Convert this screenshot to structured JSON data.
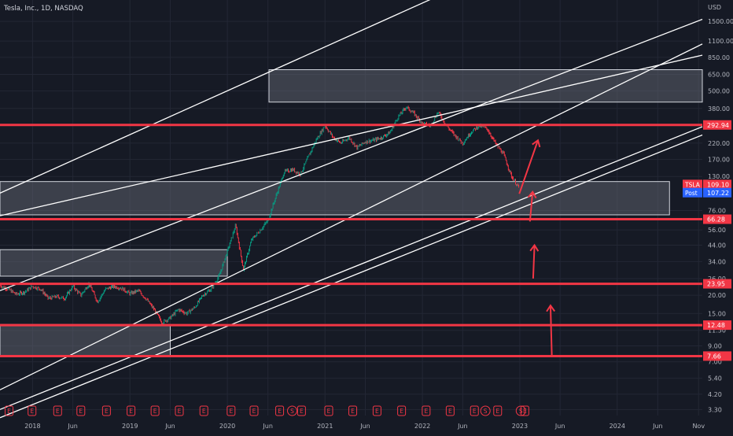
{
  "header": {
    "symbol_title": "Tesla, Inc., 1D, NASDAQ",
    "currency": "USD"
  },
  "colors": {
    "background": "#161a25",
    "grid": "#232735",
    "hline": "#f23645",
    "trend": "#ffffff",
    "zone_fill": "#5d606b",
    "candle_up": "#089981",
    "candle_down": "#f23645",
    "tag_price": "#f23645",
    "tag_post": "#2962ff"
  },
  "chart_data": {
    "type": "candlestick",
    "scale": "log",
    "x_range": [
      "2017-09-01",
      "2024-11-15"
    ],
    "y_range": [
      3.0,
      2100
    ],
    "x_ticks": [
      {
        "label": "2018",
        "date": "2018-01-01"
      },
      {
        "label": "Jun",
        "date": "2018-06-01"
      },
      {
        "label": "2019",
        "date": "2019-01-01"
      },
      {
        "label": "Jun",
        "date": "2019-06-01"
      },
      {
        "label": "2020",
        "date": "2020-01-01"
      },
      {
        "label": "Jun",
        "date": "2020-06-01"
      },
      {
        "label": "2021",
        "date": "2021-01-01"
      },
      {
        "label": "Jun",
        "date": "2021-06-01"
      },
      {
        "label": "2022",
        "date": "2022-01-01"
      },
      {
        "label": "Jun",
        "date": "2022-06-01"
      },
      {
        "label": "2023",
        "date": "2023-01-01"
      },
      {
        "label": "Jun",
        "date": "2023-06-01"
      },
      {
        "label": "2024",
        "date": "2024-01-01"
      },
      {
        "label": "Jun",
        "date": "2024-06-01"
      },
      {
        "label": "Nov",
        "date": "2024-11-01"
      }
    ],
    "y_ticks": [
      {
        "label": "1500.00",
        "value": 1500
      },
      {
        "label": "1100.00",
        "value": 1100
      },
      {
        "label": "850.00",
        "value": 850
      },
      {
        "label": "650.00",
        "value": 650
      },
      {
        "label": "500.00",
        "value": 500
      },
      {
        "label": "380.00",
        "value": 380
      },
      {
        "label": "220.00",
        "value": 220
      },
      {
        "label": "170.00",
        "value": 170
      },
      {
        "label": "130.00",
        "value": 130
      },
      {
        "label": "76.00",
        "value": 76
      },
      {
        "label": "56.00",
        "value": 56
      },
      {
        "label": "44.00",
        "value": 44
      },
      {
        "label": "34.00",
        "value": 34
      },
      {
        "label": "26.00",
        "value": 26
      },
      {
        "label": "20.00",
        "value": 20
      },
      {
        "label": "15.00",
        "value": 15
      },
      {
        "label": "11.50",
        "value": 11.5
      },
      {
        "label": "9.00",
        "value": 9
      },
      {
        "label": "7.00",
        "value": 7
      },
      {
        "label": "5.40",
        "value": 5.4
      },
      {
        "label": "4.20",
        "value": 4.2
      },
      {
        "label": "3.30",
        "value": 3.3
      }
    ],
    "price_series": [
      [
        "2017-09-01",
        23.3
      ],
      [
        "2017-10-01",
        22.0
      ],
      [
        "2017-11-01",
        20.3
      ],
      [
        "2017-12-01",
        21.0
      ],
      [
        "2018-01-01",
        23.0
      ],
      [
        "2018-02-01",
        22.0
      ],
      [
        "2018-03-01",
        19.0
      ],
      [
        "2018-04-01",
        19.6
      ],
      [
        "2018-05-01",
        19.0
      ],
      [
        "2018-06-01",
        23.0
      ],
      [
        "2018-07-01",
        20.0
      ],
      [
        "2018-08-01",
        24.0
      ],
      [
        "2018-09-01",
        18.0
      ],
      [
        "2018-10-01",
        22.0
      ],
      [
        "2018-11-01",
        23.0
      ],
      [
        "2018-12-01",
        22.3
      ],
      [
        "2019-01-01",
        20.5
      ],
      [
        "2019-02-01",
        21.5
      ],
      [
        "2019-03-01",
        19.0
      ],
      [
        "2019-04-01",
        16.0
      ],
      [
        "2019-05-01",
        13.0
      ],
      [
        "2019-06-01",
        14.0
      ],
      [
        "2019-07-01",
        16.0
      ],
      [
        "2019-08-01",
        15.0
      ],
      [
        "2019-09-01",
        16.5
      ],
      [
        "2019-10-01",
        20.0
      ],
      [
        "2019-11-01",
        22.0
      ],
      [
        "2019-12-01",
        27.0
      ],
      [
        "2020-01-01",
        40.0
      ],
      [
        "2020-02-01",
        60.0
      ],
      [
        "2020-03-01",
        30.0
      ],
      [
        "2020-04-01",
        48.0
      ],
      [
        "2020-05-01",
        55.0
      ],
      [
        "2020-06-01",
        65.0
      ],
      [
        "2020-07-01",
        95.0
      ],
      [
        "2020-08-01",
        140.0
      ],
      [
        "2020-09-01",
        145.0
      ],
      [
        "2020-10-01",
        135.0
      ],
      [
        "2020-11-01",
        180.0
      ],
      [
        "2020-12-01",
        235.0
      ],
      [
        "2021-01-01",
        290.0
      ],
      [
        "2021-02-01",
        240.0
      ],
      [
        "2021-03-01",
        220.0
      ],
      [
        "2021-04-01",
        240.0
      ],
      [
        "2021-05-01",
        205.0
      ],
      [
        "2021-06-01",
        225.0
      ],
      [
        "2021-07-01",
        230.0
      ],
      [
        "2021-08-01",
        240.0
      ],
      [
        "2021-09-01",
        260.0
      ],
      [
        "2021-10-01",
        330.0
      ],
      [
        "2021-11-01",
        390.0
      ],
      [
        "2021-12-01",
        350.0
      ],
      [
        "2022-01-01",
        300.0
      ],
      [
        "2022-02-01",
        290.0
      ],
      [
        "2022-03-01",
        360.0
      ],
      [
        "2022-04-01",
        290.0
      ],
      [
        "2022-05-01",
        250.0
      ],
      [
        "2022-06-01",
        220.0
      ],
      [
        "2022-07-01",
        260.0
      ],
      [
        "2022-08-01",
        290.0
      ],
      [
        "2022-09-01",
        275.0
      ],
      [
        "2022-10-01",
        220.0
      ],
      [
        "2022-11-01",
        185.0
      ],
      [
        "2022-12-01",
        130.0
      ],
      [
        "2022-12-28",
        109.1
      ]
    ],
    "horizontal_levels": [
      {
        "label": "292.94",
        "value": 292.94
      },
      {
        "label": "66.28",
        "value": 66.28
      },
      {
        "label": "23.95",
        "value": 23.95
      },
      {
        "label": "12.48",
        "value": 12.48
      },
      {
        "label": "7.66",
        "value": 7.66
      }
    ],
    "price_tags": [
      {
        "name": "TSLA",
        "label": "109.10",
        "value": 109.1
      },
      {
        "name": "Post",
        "label": "107.22",
        "value": 107.22
      }
    ],
    "zones": [
      {
        "x0": "2020-06-05",
        "x1": "2024-11-15",
        "y_low": 420,
        "y_high": 700
      },
      {
        "x0": "2017-09-01",
        "x1": "2024-07-15",
        "y_low": 71,
        "y_high": 120
      },
      {
        "x0": "2017-09-01",
        "x1": "2020-01-01",
        "y_low": 27,
        "y_high": 41
      },
      {
        "x0": "2017-09-01",
        "x1": "2019-06-01",
        "y_low": 7.66,
        "y_high": 12.6
      }
    ],
    "trendlines": [
      {
        "x0": "2017-09-01",
        "y0": 2.9,
        "x1": "2024-11-15",
        "y1": 250
      },
      {
        "x0": "2017-09-01",
        "y0": 3.3,
        "x1": "2024-11-15",
        "y1": 285
      },
      {
        "x0": "2017-09-01",
        "y0": 21.5,
        "x1": "2024-11-15",
        "y1": 1550
      },
      {
        "x0": "2017-09-01",
        "y0": 70,
        "x1": "2024-11-15",
        "y1": 880
      },
      {
        "x0": "2017-09-01",
        "y0": 100,
        "x1": "2022-02-20",
        "y1": 2200
      },
      {
        "x0": "2017-09-01",
        "y0": 4.5,
        "x1": "2024-11-15",
        "y1": 1050
      }
    ],
    "arrows": [
      {
        "x0": "2022-12-30",
        "y0": 99,
        "x1": "2023-03-10",
        "y1": 230
      },
      {
        "x0": "2023-02-08",
        "y0": 64,
        "x1": "2023-02-18",
        "y1": 102
      },
      {
        "x0": "2023-02-20",
        "y0": 26,
        "x1": "2023-02-25",
        "y1": 44
      },
      {
        "x0": "2023-05-01",
        "y0": 7.7,
        "x1": "2023-04-26",
        "y1": 17
      }
    ],
    "events": [
      {
        "date": "2017-10-05",
        "kind": "E"
      },
      {
        "date": "2017-12-30",
        "kind": "E"
      },
      {
        "date": "2018-04-05",
        "kind": "E"
      },
      {
        "date": "2018-07-01",
        "kind": "E"
      },
      {
        "date": "2018-10-05",
        "kind": "E"
      },
      {
        "date": "2019-01-05",
        "kind": "E"
      },
      {
        "date": "2019-04-05",
        "kind": "E"
      },
      {
        "date": "2019-07-05",
        "kind": "E"
      },
      {
        "date": "2019-10-05",
        "kind": "E"
      },
      {
        "date": "2020-01-15",
        "kind": "E"
      },
      {
        "date": "2020-04-10",
        "kind": "E"
      },
      {
        "date": "2020-07-15",
        "kind": "E"
      },
      {
        "date": "2020-08-31",
        "kind": "S"
      },
      {
        "date": "2020-10-05",
        "kind": "E"
      },
      {
        "date": "2021-01-15",
        "kind": "E"
      },
      {
        "date": "2021-04-15",
        "kind": "E"
      },
      {
        "date": "2021-07-15",
        "kind": "E"
      },
      {
        "date": "2021-10-15",
        "kind": "E"
      },
      {
        "date": "2022-01-15",
        "kind": "E"
      },
      {
        "date": "2022-04-15",
        "kind": "E"
      },
      {
        "date": "2022-07-15",
        "kind": "E"
      },
      {
        "date": "2022-08-25",
        "kind": "S"
      },
      {
        "date": "2022-10-10",
        "kind": "E"
      },
      {
        "date": "2023-01-05",
        "kind": "S"
      },
      {
        "date": "2023-01-20",
        "kind": "E"
      }
    ]
  }
}
